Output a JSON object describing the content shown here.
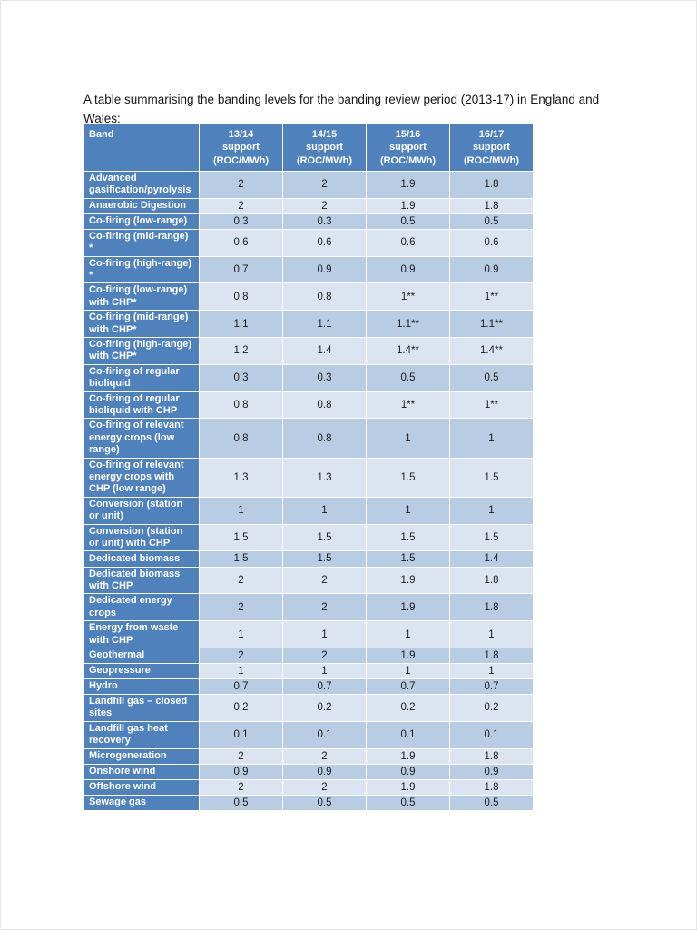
{
  "document": {
    "intro": "A table summarising the banding levels for the banding review period (2013-17) in England and Wales:"
  },
  "colors": {
    "header_blue": "#4F81BD",
    "band_dark": "#B8CCE4",
    "band_light": "#DBE5F1",
    "grid": "#FFFFFF"
  },
  "table": {
    "columns": [
      "Band",
      "13/14\nsupport\n(ROC/MWh)",
      "14/15\nsupport\n(ROC/MWh)",
      "15/16\nsupport\n(ROC/MWh)",
      "16/17\nsupport\n(ROC/MWh)"
    ],
    "rows": [
      {
        "band": "Advanced gasification/pyrolysis",
        "values": [
          "2",
          "2",
          "1.9",
          "1.8"
        ]
      },
      {
        "band": "Anaerobic Digestion",
        "values": [
          "2",
          "2",
          "1.9",
          "1.8"
        ]
      },
      {
        "band": "Co-firing (low-range)",
        "values": [
          "0.3",
          "0.3",
          "0.5",
          "0.5"
        ]
      },
      {
        "band": "Co-firing (mid-range) *",
        "values": [
          "0.6",
          "0.6",
          "0.6",
          "0.6"
        ]
      },
      {
        "band": "Co-firing (high-range) *",
        "values": [
          "0.7",
          "0.9",
          "0.9",
          "0.9"
        ]
      },
      {
        "band": "Co-firing (low-range) with CHP*",
        "values": [
          "0.8",
          "0.8",
          "1**",
          "1**"
        ]
      },
      {
        "band": "Co-firing (mid-range) with CHP*",
        "values": [
          "1.1",
          "1.1",
          "1.1**",
          "1.1**"
        ]
      },
      {
        "band": "Co-firing (high-range) with CHP*",
        "values": [
          "1.2",
          "1.4",
          "1.4**",
          "1.4**"
        ]
      },
      {
        "band": "Co-firing of regular bioliquid",
        "values": [
          "0.3",
          "0.3",
          "0.5",
          "0.5"
        ]
      },
      {
        "band": "Co-firing of regular bioliquid with CHP",
        "values": [
          "0.8",
          "0.8",
          "1**",
          "1**"
        ]
      },
      {
        "band": "Co-firing of relevant energy crops (low range)",
        "values": [
          "0.8",
          "0.8",
          "1",
          "1"
        ]
      },
      {
        "band": "Co-firing of relevant energy crops with CHP (low range)",
        "values": [
          "1.3",
          "1.3",
          "1.5",
          "1.5"
        ]
      },
      {
        "band": "Conversion (station or unit)",
        "values": [
          "1",
          "1",
          "1",
          "1"
        ]
      },
      {
        "band": "Conversion (station or unit) with CHP",
        "values": [
          "1.5",
          "1.5",
          "1.5",
          "1.5"
        ]
      },
      {
        "band": "Dedicated biomass",
        "values": [
          "1.5",
          "1.5",
          "1.5",
          "1.4"
        ]
      },
      {
        "band": "Dedicated biomass with CHP",
        "values": [
          "2",
          "2",
          "1.9",
          "1.8"
        ]
      },
      {
        "band": "Dedicated energy crops",
        "values": [
          "2",
          "2",
          "1.9",
          "1.8"
        ]
      },
      {
        "band": "Energy from waste with CHP",
        "values": [
          "1",
          "1",
          "1",
          "1"
        ]
      },
      {
        "band": "Geothermal",
        "values": [
          "2",
          "2",
          "1.9",
          "1.8"
        ]
      },
      {
        "band": "Geopressure",
        "values": [
          "1",
          "1",
          "1",
          "1"
        ]
      },
      {
        "band": "Hydro",
        "values": [
          "0.7",
          "0.7",
          "0.7",
          "0.7"
        ]
      },
      {
        "band": "Landfill gas – closed sites",
        "values": [
          "0.2",
          "0.2",
          "0.2",
          "0.2"
        ]
      },
      {
        "band": "Landfill gas heat recovery",
        "values": [
          "0.1",
          "0.1",
          "0.1",
          "0.1"
        ]
      },
      {
        "band": "Microgeneration",
        "values": [
          "2",
          "2",
          "1.9",
          "1.8"
        ]
      },
      {
        "band": "Onshore wind",
        "values": [
          "0.9",
          "0.9",
          "0.9",
          "0.9"
        ]
      },
      {
        "band": "Offshore wind",
        "values": [
          "2",
          "2",
          "1.9",
          "1.8"
        ]
      },
      {
        "band": "Sewage gas",
        "values": [
          "0.5",
          "0.5",
          "0.5",
          "0.5"
        ]
      }
    ]
  }
}
